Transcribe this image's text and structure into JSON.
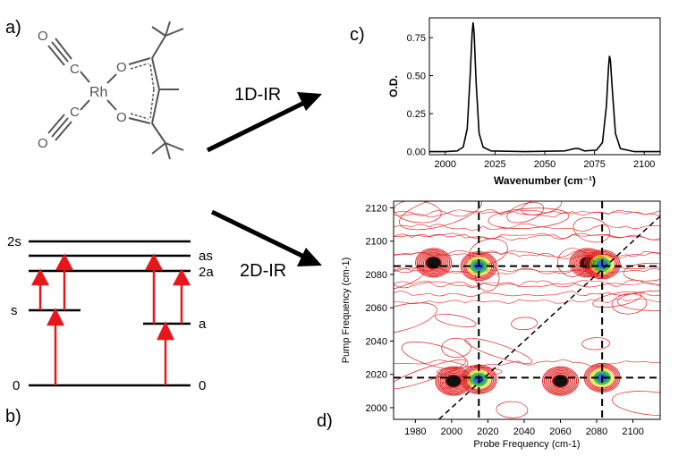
{
  "panels": {
    "a": "a)",
    "b": "b)",
    "c": "c)",
    "d": "d)"
  },
  "arrows": {
    "one_d": "1D-IR",
    "two_d": "2D-IR"
  },
  "molecule": {
    "atoms": {
      "rh": "Rh",
      "o_left_1": "O",
      "o_left_2": "O",
      "o_ring_1": "O",
      "o_ring_2": "O",
      "c_1": "C",
      "c_2": "C"
    }
  },
  "levels": {
    "left": [
      "2s",
      "s",
      "0"
    ],
    "right": [
      "as",
      "2a",
      "a",
      "0"
    ]
  },
  "chart_data": [
    {
      "type": "line",
      "xlabel": "Wavenumber (cm⁻¹)",
      "ylabel": "O.D.",
      "xlim": [
        1992,
        2108
      ],
      "ylim": [
        -0.02,
        0.88
      ],
      "x_ticks": [
        2000,
        2025,
        2050,
        2075,
        2100
      ],
      "y_ticks": [
        "0.00",
        "0.25",
        "0.50",
        "0.75"
      ],
      "series": [
        {
          "values_desc": "peaks",
          "points": [
            [
              1992,
              0.0
            ],
            [
              2000,
              0.0
            ],
            [
              2006,
              0.005
            ],
            [
              2009,
              0.03
            ],
            [
              2011,
              0.15
            ],
            [
              2012.5,
              0.5
            ],
            [
              2013.5,
              0.78
            ],
            [
              2014,
              0.85
            ],
            [
              2014.5,
              0.78
            ],
            [
              2015.5,
              0.45
            ],
            [
              2017,
              0.12
            ],
            [
              2019,
              0.03
            ],
            [
              2023,
              0.005
            ],
            [
              2040,
              0.0
            ],
            [
              2060,
              0.005
            ],
            [
              2065,
              0.02
            ],
            [
              2067,
              0.02
            ],
            [
              2070,
              0.005
            ],
            [
              2076,
              0.01
            ],
            [
              2079,
              0.06
            ],
            [
              2081,
              0.3
            ],
            [
              2082,
              0.55
            ],
            [
              2082.5,
              0.63
            ],
            [
              2083,
              0.6
            ],
            [
              2084,
              0.4
            ],
            [
              2085.5,
              0.12
            ],
            [
              2088,
              0.02
            ],
            [
              2095,
              0.0
            ],
            [
              2108,
              0.0
            ]
          ]
        }
      ]
    },
    {
      "type": "heatmap",
      "xlabel": "Probe Frequency (cm-1)",
      "ylabel": "Pump Frequency (cm-1)",
      "xlim": [
        1968,
        2115
      ],
      "ylim": [
        1993,
        2124
      ],
      "x_ticks": [
        1980,
        2000,
        2020,
        2040,
        2060,
        2080,
        2100
      ],
      "y_ticks": [
        2000,
        2020,
        2040,
        2060,
        2080,
        2100,
        2120
      ],
      "guide_lines_x": [
        2015,
        2083
      ],
      "guide_lines_y": [
        2085,
        2018
      ],
      "peaks": [
        {
          "x": 1990,
          "y": 2087,
          "kind": "negative"
        },
        {
          "x": 2015,
          "y": 2085,
          "kind": "positive"
        },
        {
          "x": 2075,
          "y": 2087,
          "kind": "negative"
        },
        {
          "x": 2083,
          "y": 2086,
          "kind": "positive"
        },
        {
          "x": 2001,
          "y": 2016,
          "kind": "negative"
        },
        {
          "x": 2015,
          "y": 2017,
          "kind": "positive"
        },
        {
          "x": 2060,
          "y": 2016,
          "kind": "negative"
        },
        {
          "x": 2083,
          "y": 2018,
          "kind": "positive"
        }
      ]
    }
  ],
  "colors": {
    "red": "#e8161b",
    "contour": "#e02020",
    "accent_yellow": "#f2d21c",
    "accent_green": "#3fbf3f",
    "accent_blue": "#2b70e0"
  }
}
